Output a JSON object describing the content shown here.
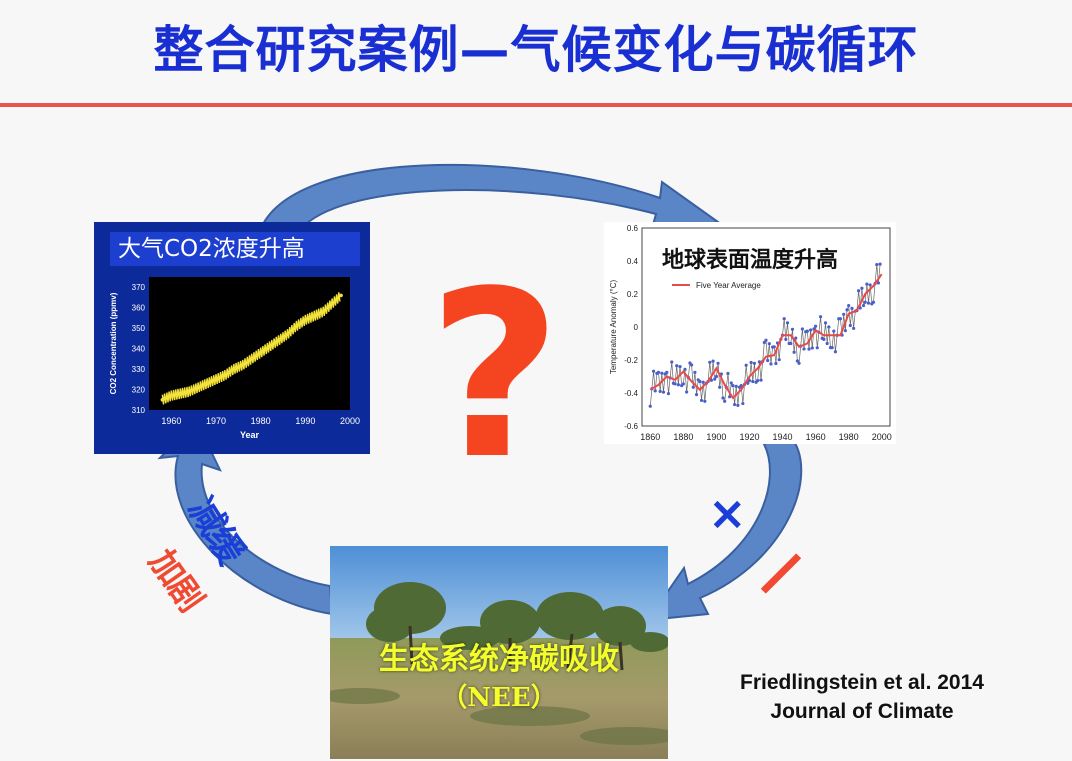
{
  "title": "整合研究案例—气候变化与碳循环",
  "question_mark": "?",
  "labels": {
    "slow": "减缓",
    "intensify": "加剧",
    "times": "×",
    "minus": "/"
  },
  "co2_panel": {
    "title": "大气CO2浓度升高"
  },
  "temp_panel": {
    "title": "地球表面温度升高"
  },
  "eco_panel": {
    "title": "生态系统净碳吸收",
    "subtitle": "（NEE）"
  },
  "citation": {
    "line1": "Friedlingstein et al. 2014",
    "line2": "Journal of Climate"
  },
  "colors": {
    "title": "#1a2fd1",
    "rule": "#e8554d",
    "arrow": "#5a86c8",
    "question": "#f54520",
    "co2_series": "#f2e23a",
    "temp_average": "#e84a4a",
    "temp_points": "#4a60c8"
  },
  "chart_data": [
    {
      "type": "line",
      "title": "",
      "xlabel": "Year",
      "ylabel": "CO2 Concentration (ppmv)",
      "xlim": [
        1955,
        2000
      ],
      "ylim": [
        310,
        375
      ],
      "x_ticks": [
        1960,
        1970,
        1980,
        1990,
        2000
      ],
      "y_ticks": [
        310,
        320,
        330,
        340,
        350,
        360,
        370
      ],
      "x_tick_labels": [
        "1960",
        "1970",
        "1980",
        "1990",
        "2000"
      ],
      "y_tick_labels": [
        "310",
        "320",
        "330",
        "340",
        "350",
        "360",
        "370"
      ],
      "grid": false,
      "series": [
        {
          "x": [
            1958,
            1960,
            1962,
            1964,
            1966,
            1968,
            1970,
            1972,
            1974,
            1976,
            1978,
            1980,
            1982,
            1984,
            1986,
            1988,
            1990,
            1992,
            1994,
            1996,
            1998
          ],
          "values": [
            315,
            317,
            318,
            319,
            321,
            323,
            325,
            327,
            330,
            332,
            335,
            338,
            341,
            344,
            347,
            351,
            354,
            356,
            358,
            362,
            366
          ]
        }
      ]
    },
    {
      "type": "line",
      "title": "",
      "xlabel": "",
      "ylabel": "Temperature Anomaly (°C)",
      "xlim": [
        1855,
        2005
      ],
      "ylim": [
        -0.6,
        0.6
      ],
      "x_ticks": [
        1860,
        1880,
        1900,
        1920,
        1940,
        1960,
        1980,
        2000
      ],
      "y_ticks": [
        -0.6,
        -0.4,
        -0.2,
        0,
        0.2,
        0.4,
        0.6
      ],
      "x_tick_labels": [
        "1860",
        "1880",
        "1900",
        "1920",
        "1940",
        "1960",
        "1980",
        "2000"
      ],
      "y_tick_labels": [
        "-0.6",
        "-0.4",
        "-0.2",
        "0",
        "0.2",
        "0.4",
        "0.6"
      ],
      "grid": false,
      "legend": "top-left",
      "series": [
        {
          "name": "Five Year Average",
          "x": [
            1860,
            1865,
            1870,
            1875,
            1880,
            1885,
            1890,
            1895,
            1900,
            1905,
            1910,
            1915,
            1920,
            1925,
            1930,
            1935,
            1940,
            1945,
            1950,
            1955,
            1960,
            1965,
            1970,
            1975,
            1980,
            1985,
            1990,
            1995,
            2000
          ],
          "values": [
            -0.38,
            -0.35,
            -0.3,
            -0.32,
            -0.27,
            -0.33,
            -0.38,
            -0.33,
            -0.25,
            -0.35,
            -0.43,
            -0.38,
            -0.3,
            -0.25,
            -0.18,
            -0.17,
            -0.05,
            -0.05,
            -0.12,
            -0.1,
            -0.02,
            -0.05,
            -0.05,
            -0.05,
            0.08,
            0.1,
            0.2,
            0.25,
            0.32
          ]
        }
      ]
    }
  ]
}
